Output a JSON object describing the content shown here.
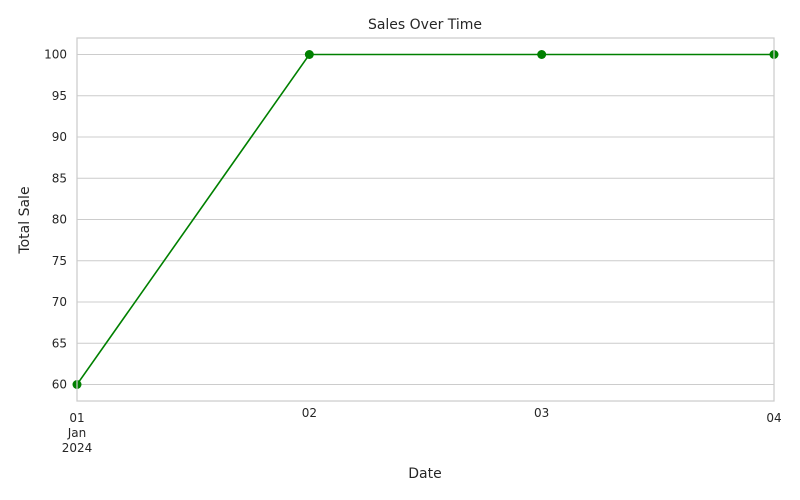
{
  "chart_data": {
    "type": "line",
    "title": "Sales Over Time",
    "xlabel": "Date",
    "ylabel": "Total Sale",
    "x": [
      "2024-01-01",
      "2024-01-02",
      "2024-01-03",
      "2024-01-04"
    ],
    "x_tick_labels": [
      {
        "lines": [
          "01",
          "Jan",
          "2024"
        ]
      },
      {
        "lines": [
          "02"
        ]
      },
      {
        "lines": [
          "03"
        ]
      },
      {
        "lines": [
          "04"
        ]
      }
    ],
    "series": [
      {
        "values": [
          60,
          100,
          100,
          100
        ],
        "color": "#008000",
        "marker": "circle"
      }
    ],
    "ylim": [
      58,
      102
    ],
    "y_ticks": [
      60,
      65,
      70,
      75,
      80,
      85,
      90,
      95,
      100
    ],
    "grid": true,
    "grid_axis": "y",
    "legend": "none"
  }
}
